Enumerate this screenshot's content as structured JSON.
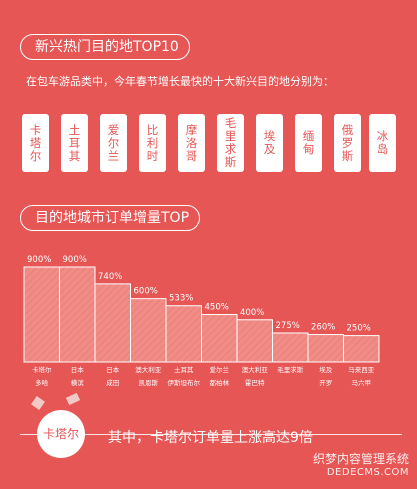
{
  "headings": {
    "section1": "新兴热门目的地TOP10",
    "section2": "目的地城市订单增量TOP"
  },
  "intro": "在包车游品类中，今年春节增长最快的十大新兴目的地分别为：",
  "destinations": [
    "卡塔尔",
    "土耳其",
    "爱尔兰",
    "比利时",
    "摩洛哥",
    "毛里求斯",
    "埃及",
    "缅甸",
    "俄罗斯",
    "冰岛"
  ],
  "chart_data": {
    "type": "bar",
    "categories": [
      [
        "卡塔尔",
        "多哈"
      ],
      [
        "日本",
        "横滨"
      ],
      [
        "日本",
        "成田"
      ],
      [
        "澳大利亚",
        "凯恩斯"
      ],
      [
        "土耳其",
        "伊斯坦布尔"
      ],
      [
        "爱尔兰",
        "都柏林"
      ],
      [
        "澳大利亚",
        "霍巴特"
      ],
      [
        "毛里求斯",
        ""
      ],
      [
        "埃及",
        "开罗"
      ],
      [
        "马来西亚",
        "马六甲"
      ]
    ],
    "values": [
      900,
      900,
      740,
      600,
      533,
      450,
      400,
      275,
      260,
      250
    ],
    "value_labels": [
      "900%",
      "900%",
      "740%",
      "600%",
      "533%",
      "450%",
      "400%",
      "275%",
      "260%",
      "250%"
    ],
    "unit": "%",
    "ylim": [
      0,
      900
    ]
  },
  "footer": {
    "badge": "卡塔尔",
    "text": "其中，卡塔尔订单量上涨高达9倍"
  },
  "watermark": {
    "line1": "织梦内容管理系统",
    "line2": "DEDECMS.COM"
  },
  "colors": {
    "background": "#e55655",
    "bar_fill": "#f08c86",
    "text": "#ffffff"
  }
}
